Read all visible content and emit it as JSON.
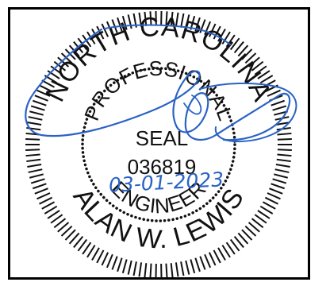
{
  "seal": {
    "top_arc": "NORTH CAROLINA",
    "inner_arc": "PROFESSIONAL",
    "center_label": "SEAL",
    "license_number": "036819",
    "bottom_inner_arc": "ENGINEER",
    "bottom_outer_arc": "ALAN W. LEWIS",
    "date_handwritten": "03-01-2023"
  },
  "colors": {
    "ink": "#111111",
    "signature": "#2a63c4",
    "border": "#000000"
  }
}
